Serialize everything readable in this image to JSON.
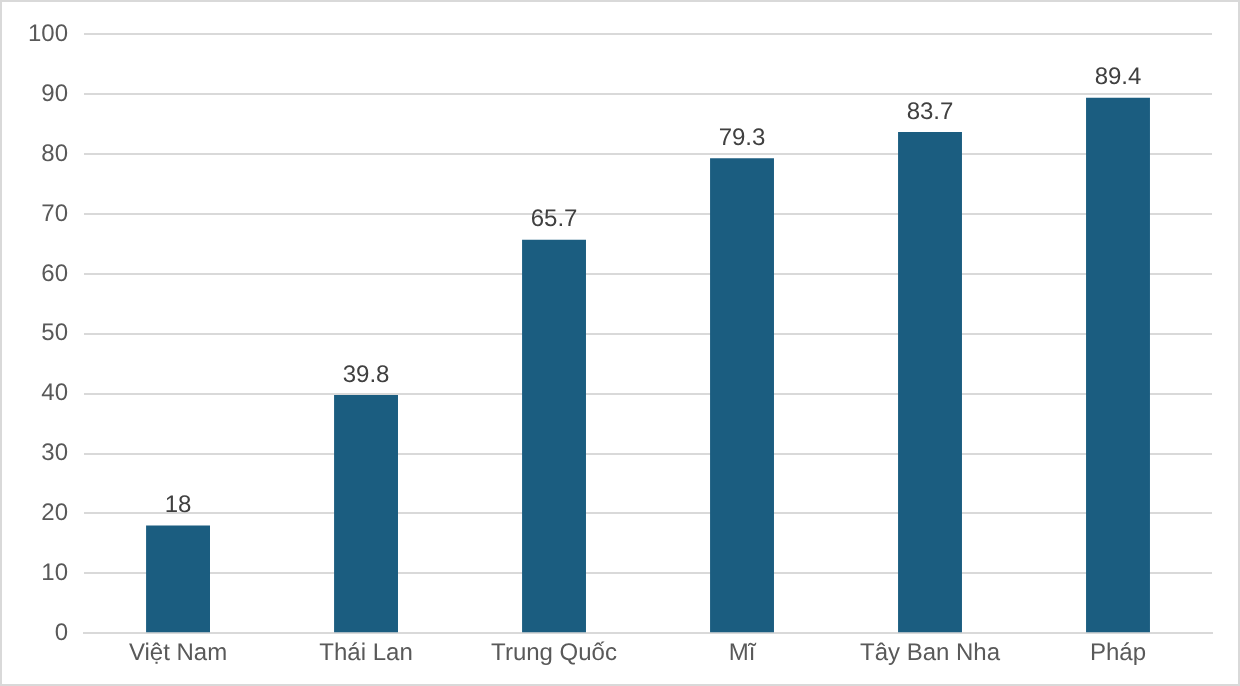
{
  "chart_data": {
    "type": "bar",
    "categories": [
      "Việt Nam",
      "Thái Lan",
      "Trung Quốc",
      "Mĩ",
      "Tây Ban Nha",
      "Pháp"
    ],
    "values": [
      18,
      39.8,
      65.7,
      79.3,
      83.7,
      89.4
    ],
    "color": "#1b5d80",
    "ylim": [
      0,
      100
    ],
    "yticks": [
      0,
      10,
      20,
      30,
      40,
      50,
      60,
      70,
      80,
      90,
      100
    ],
    "grid": "y",
    "data_labels": true
  }
}
